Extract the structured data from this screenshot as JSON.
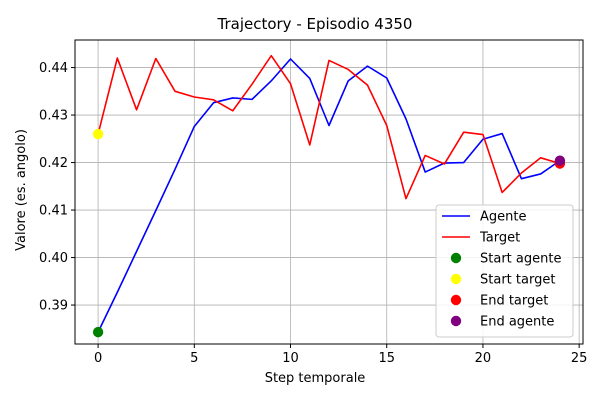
{
  "chart_data": {
    "type": "line",
    "title": "Trajectory - Episodio 4350",
    "xlabel": "Step temporale",
    "ylabel": "Valore (es. angolo)",
    "xlim": [
      -1.2,
      25.2
    ],
    "ylim": [
      0.3818,
      0.4458
    ],
    "xticks": [
      "0",
      "5",
      "10",
      "15",
      "20",
      "25"
    ],
    "xtick_values": [
      0,
      5,
      10,
      15,
      20,
      25
    ],
    "yticks": [
      "0.39",
      "0.40",
      "0.41",
      "0.42",
      "0.43",
      "0.44"
    ],
    "ytick_values": [
      0.39,
      0.4,
      0.41,
      0.42,
      0.43,
      0.44
    ],
    "grid": true,
    "legend_position": "bottom-right",
    "x": [
      0,
      1,
      2,
      3,
      4,
      5,
      6,
      7,
      8,
      9,
      10,
      11,
      12,
      13,
      14,
      15,
      16,
      17,
      18,
      19,
      20,
      21,
      22,
      23,
      24
    ],
    "series": [
      {
        "name": "Agente",
        "color": "#0000ff",
        "values": [
          0.3843,
          0.3927,
          0.4013,
          0.4099,
          0.4186,
          0.4276,
          0.4326,
          0.4336,
          0.4333,
          0.4372,
          0.4418,
          0.4377,
          0.4278,
          0.4372,
          0.4403,
          0.4378,
          0.4292,
          0.418,
          0.4199,
          0.42,
          0.4249,
          0.4261,
          0.4166,
          0.4176,
          0.4204
        ]
      },
      {
        "name": "Target",
        "color": "#ff0000",
        "values": [
          0.426,
          0.442,
          0.4311,
          0.4419,
          0.435,
          0.4338,
          0.4332,
          0.4309,
          0.4365,
          0.4425,
          0.4366,
          0.4237,
          0.4415,
          0.4396,
          0.4363,
          0.4278,
          0.4124,
          0.4215,
          0.4197,
          0.4264,
          0.4259,
          0.4137,
          0.4178,
          0.421,
          0.4198
        ]
      }
    ],
    "markers": [
      {
        "name": "Start agente",
        "color": "#008000",
        "x": 0,
        "y": 0.3843
      },
      {
        "name": "Start target",
        "color": "#ffff00",
        "x": 0,
        "y": 0.426
      },
      {
        "name": "End target",
        "color": "#ff0000",
        "x": 24,
        "y": 0.4198
      },
      {
        "name": "End agente",
        "color": "#800080",
        "x": 24,
        "y": 0.4204
      }
    ]
  }
}
